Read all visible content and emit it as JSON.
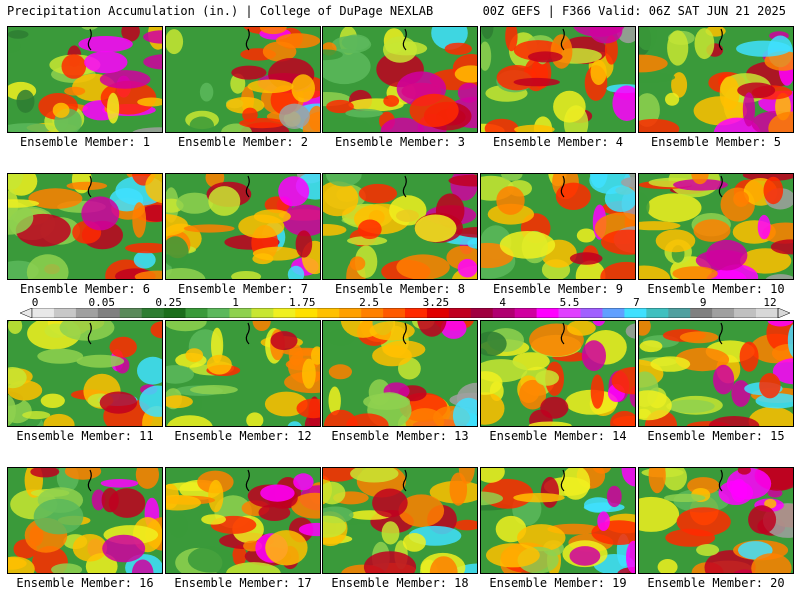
{
  "header": {
    "title_left": "Precipitation Accumulation (in.) | College of DuPage NEXLAB",
    "title_right": "00Z GEFS | F366 Valid: 06Z SAT JUN 21 2025"
  },
  "panel_label_prefix": "Ensemble Member: ",
  "members": [
    1,
    2,
    3,
    4,
    5,
    6,
    7,
    8,
    9,
    10,
    11,
    12,
    13,
    14,
    15,
    16,
    17,
    18,
    19,
    20
  ],
  "colorbar": {
    "tick_labels": [
      "0",
      "0.05",
      "0.25",
      "1",
      "1.75",
      "2.5",
      "3.25",
      "4",
      "5.5",
      "7",
      "9",
      "12"
    ],
    "colors": [
      "#e8e8e8",
      "#c8c8c8",
      "#a0a0a0",
      "#808080",
      "#5a8a5a",
      "#2e7d32",
      "#1b6e1b",
      "#3a9a3a",
      "#5cb85c",
      "#8fd14f",
      "#c8e632",
      "#f0f020",
      "#ffe000",
      "#ffc000",
      "#ffa000",
      "#ff8000",
      "#ff5a00",
      "#ff2a00",
      "#e00000",
      "#c00020",
      "#a00040",
      "#b00070",
      "#d000a0",
      "#ff00ff",
      "#e040ff",
      "#a060ff",
      "#60a0ff",
      "#40e0ff",
      "#40c0c0",
      "#50a0a0",
      "#808080",
      "#a0a0a0",
      "#c0c0c0",
      "#d8d8d8"
    ]
  }
}
